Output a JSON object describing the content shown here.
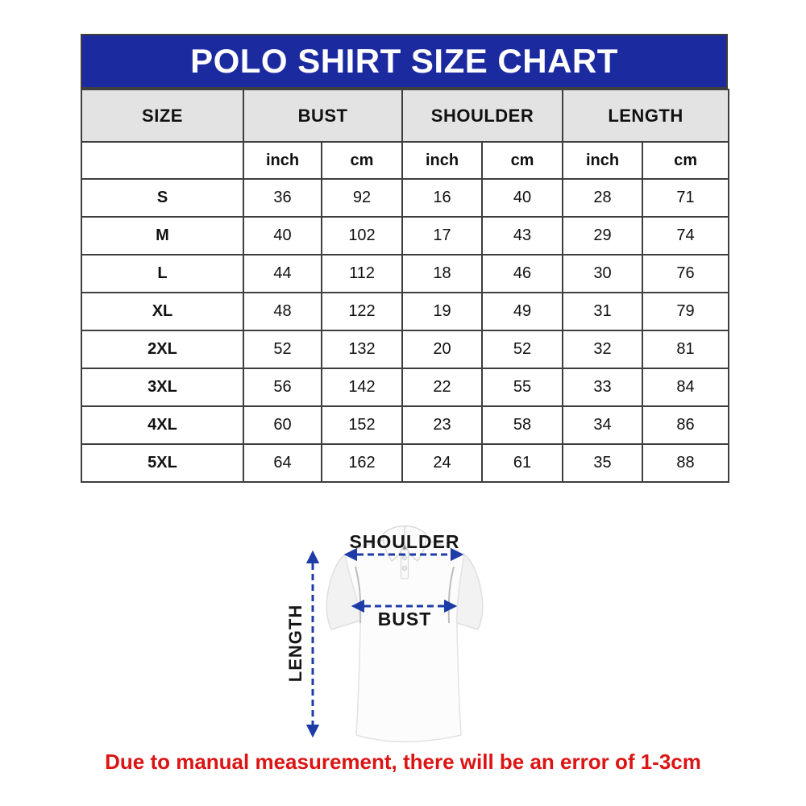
{
  "title": "POLO SHIRT SIZE CHART",
  "disclaimer": "Due to manual measurement, there will be an error of 1-3cm",
  "colors": {
    "banner_blue": "#1C2AA0",
    "header_gray": "#E3E3E3",
    "grid_border": "#3E3E3E",
    "arrow_blue": "#1E3CA8",
    "disclaimer_red": "#DC1414"
  },
  "diagram": {
    "shoulder_label": "SHOULDER",
    "bust_label": "BUST",
    "length_label": "LENGTH"
  },
  "chart_data": {
    "type": "table",
    "title": "POLO SHIRT SIZE CHART",
    "group_headers": [
      "SIZE",
      "BUST",
      "SHOULDER",
      "LENGTH"
    ],
    "unit_headers": [
      "",
      "inch",
      "cm",
      "inch",
      "cm",
      "inch",
      "cm"
    ],
    "rows": [
      {
        "size": "S",
        "values": [
          36,
          92,
          16,
          40,
          28,
          71
        ]
      },
      {
        "size": "M",
        "values": [
          40,
          102,
          17,
          43,
          29,
          74
        ]
      },
      {
        "size": "L",
        "values": [
          44,
          112,
          18,
          46,
          30,
          76
        ]
      },
      {
        "size": "XL",
        "values": [
          48,
          122,
          19,
          49,
          31,
          79
        ]
      },
      {
        "size": "2XL",
        "values": [
          52,
          132,
          20,
          52,
          32,
          81
        ]
      },
      {
        "size": "3XL",
        "values": [
          56,
          142,
          22,
          55,
          33,
          84
        ]
      },
      {
        "size": "4XL",
        "values": [
          60,
          152,
          23,
          58,
          34,
          86
        ]
      },
      {
        "size": "5XL",
        "values": [
          64,
          162,
          24,
          61,
          35,
          88
        ]
      }
    ]
  }
}
